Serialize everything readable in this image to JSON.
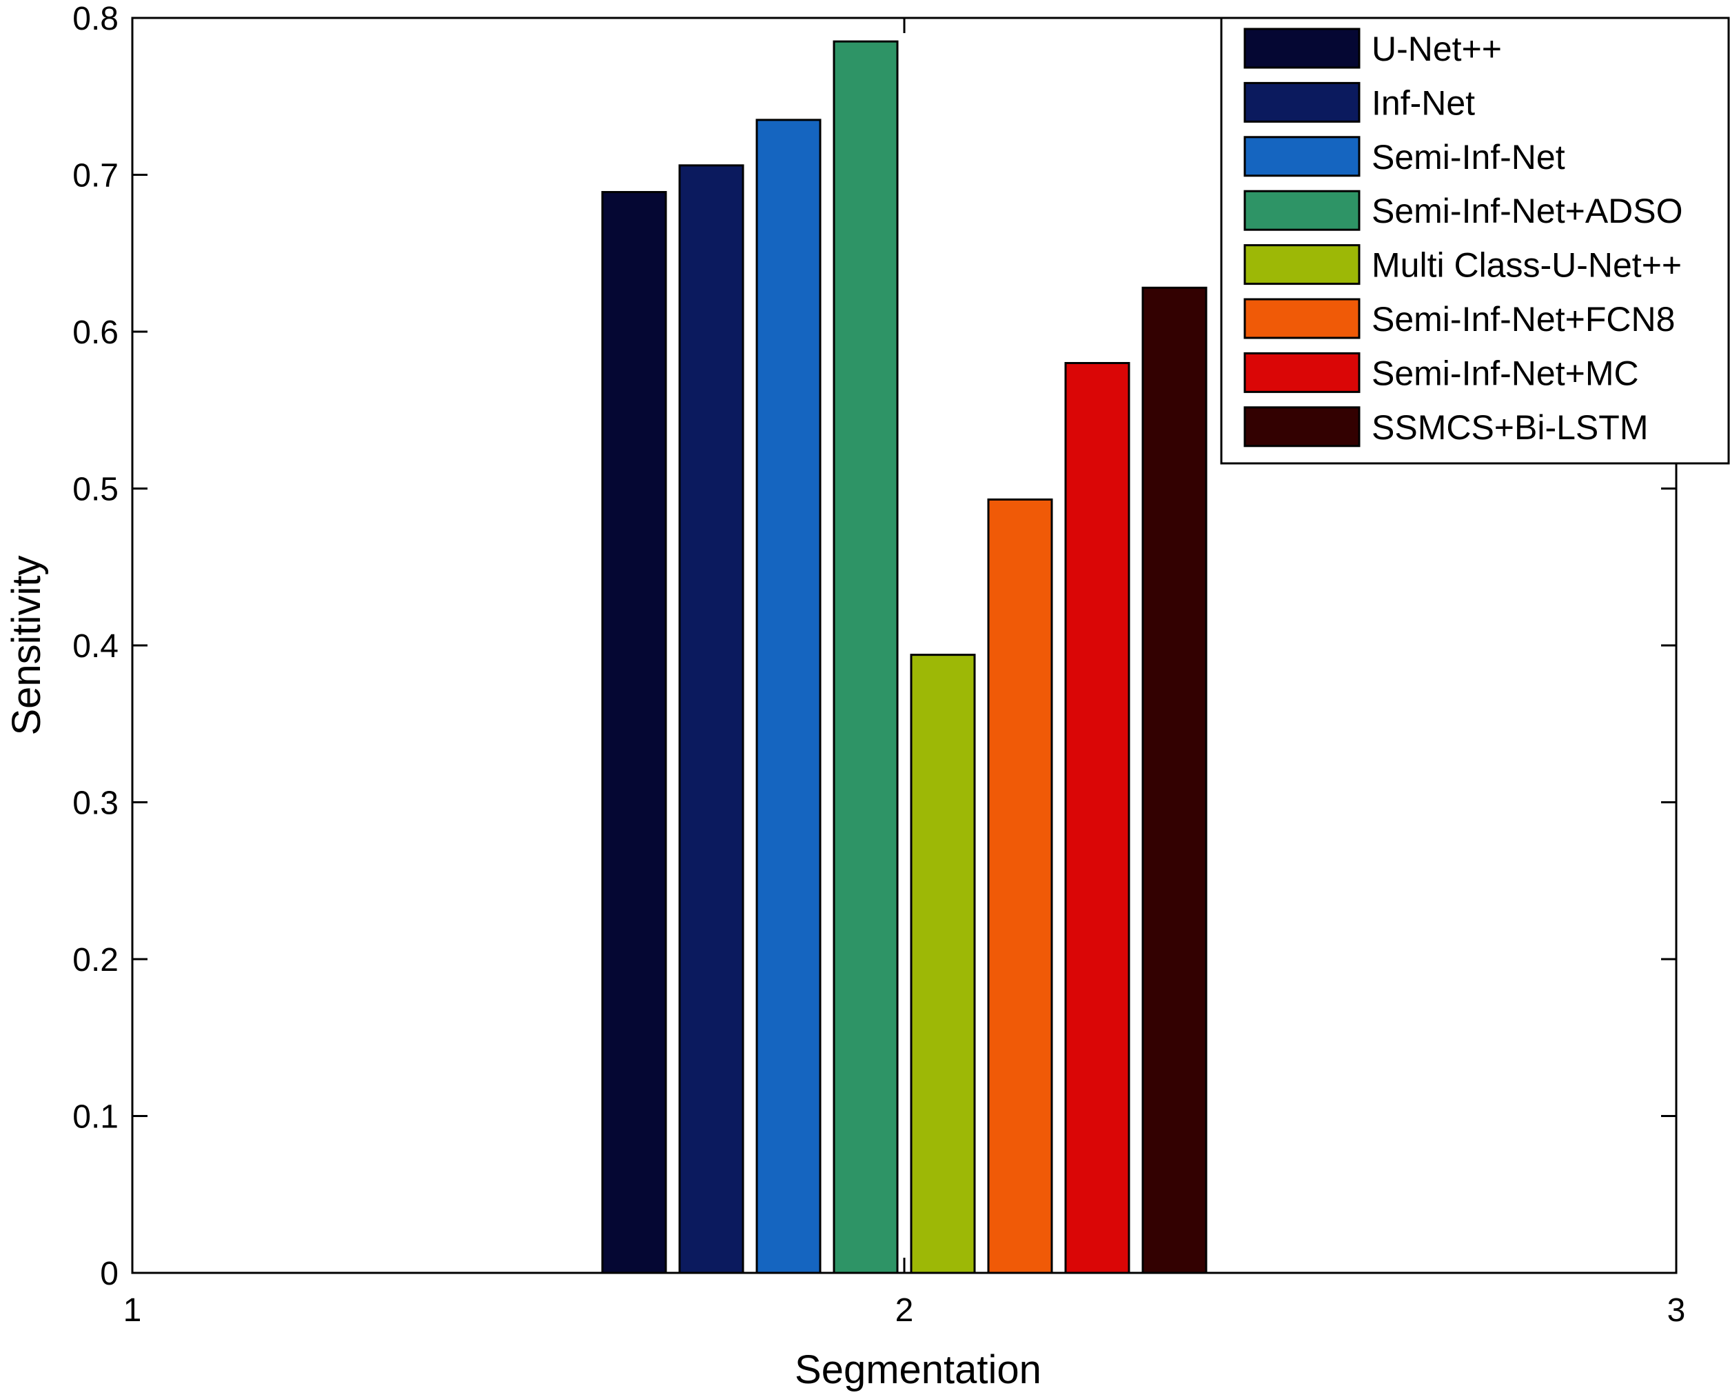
{
  "chart_data": {
    "type": "bar",
    "title": "",
    "xlabel": "Segmentation",
    "ylabel": "Sensitivity",
    "xlim": [
      1,
      3
    ],
    "ylim": [
      0,
      0.8
    ],
    "xticks": [
      1,
      2,
      3
    ],
    "xtick_labels": [
      "1",
      "2",
      "3"
    ],
    "yticks": [
      0,
      0.1,
      0.2,
      0.3,
      0.4,
      0.5,
      0.6,
      0.7,
      0.8
    ],
    "ytick_labels": [
      "0",
      "0.1",
      "0.2",
      "0.3",
      "0.4",
      "0.5",
      "0.6",
      "0.7",
      "0.8"
    ],
    "group_center": 2,
    "grid": false,
    "legend_position": "top-right",
    "series": [
      {
        "name": "U-Net++",
        "value": 0.689,
        "color": "#050733"
      },
      {
        "name": "Inf-Net",
        "value": 0.706,
        "color": "#0b1a5e"
      },
      {
        "name": "Semi-Inf-Net",
        "value": 0.735,
        "color": "#1565c0"
      },
      {
        "name": "Semi-Inf-Net+ADSO",
        "value": 0.785,
        "color": "#2e9466"
      },
      {
        "name": "Multi Class-U-Net++",
        "value": 0.394,
        "color": "#9db806"
      },
      {
        "name": "Semi-Inf-Net+FCN8",
        "value": 0.493,
        "color": "#f05a07"
      },
      {
        "name": "Semi-Inf-Net+MC",
        "value": 0.58,
        "color": "#da0606"
      },
      {
        "name": "SSMCS+Bi-LSTM",
        "value": 0.628,
        "color": "#330101"
      }
    ]
  }
}
